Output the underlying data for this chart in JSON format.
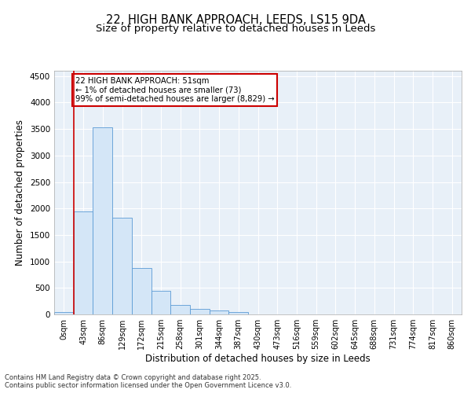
{
  "title_line1": "22, HIGH BANK APPROACH, LEEDS, LS15 9DA",
  "title_line2": "Size of property relative to detached houses in Leeds",
  "xlabel": "Distribution of detached houses by size in Leeds",
  "ylabel": "Number of detached properties",
  "bar_labels": [
    "0sqm",
    "43sqm",
    "86sqm",
    "129sqm",
    "172sqm",
    "215sqm",
    "258sqm",
    "301sqm",
    "344sqm",
    "387sqm",
    "430sqm",
    "473sqm",
    "516sqm",
    "559sqm",
    "602sqm",
    "645sqm",
    "688sqm",
    "731sqm",
    "774sqm",
    "817sqm",
    "860sqm"
  ],
  "bar_values": [
    50,
    1950,
    3530,
    1820,
    870,
    440,
    175,
    110,
    75,
    45,
    0,
    0,
    0,
    0,
    0,
    0,
    0,
    0,
    0,
    0,
    0
  ],
  "bar_color": "#d4e6f7",
  "bar_edge_color": "#5b9bd5",
  "ylim": [
    0,
    4600
  ],
  "yticks": [
    0,
    500,
    1000,
    1500,
    2000,
    2500,
    3000,
    3500,
    4000,
    4500
  ],
  "vline_x": 0.5,
  "vline_color": "#cc0000",
  "annotation_text": "22 HIGH BANK APPROACH: 51sqm\n← 1% of detached houses are smaller (73)\n99% of semi-detached houses are larger (8,829) →",
  "annotation_box_facecolor": "#ffffff",
  "annotation_box_edgecolor": "#cc0000",
  "footer_text": "Contains HM Land Registry data © Crown copyright and database right 2025.\nContains public sector information licensed under the Open Government Licence v3.0.",
  "fig_bg_color": "#ffffff",
  "plot_bg_color": "#e8f0f8",
  "grid_color": "#ffffff",
  "title_fontsize": 10.5,
  "subtitle_fontsize": 9.5,
  "tick_fontsize": 7,
  "label_fontsize": 8.5,
  "footer_fontsize": 6
}
